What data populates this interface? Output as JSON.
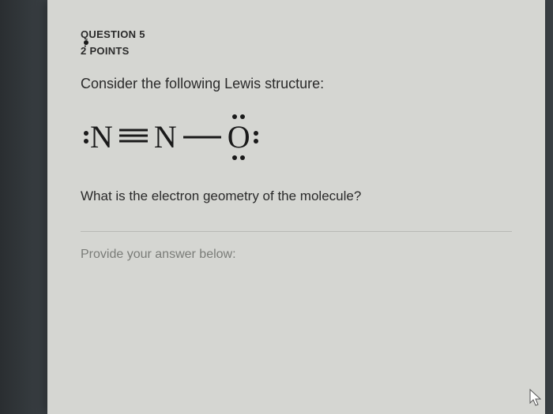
{
  "question": {
    "label": "QUESTION 5",
    "points": "2 POINTS",
    "separator": "·"
  },
  "prompt": "Consider the following Lewis structure:",
  "lewis": {
    "atoms": {
      "n1": "N",
      "n2": "N",
      "o": "O"
    },
    "bonds": {
      "triple_svg": "<svg width='36' height='20'><line x1='0' y1='3' x2='36' y2='3' stroke='#1a1a1a' stroke-width='3'/><line x1='0' y1='10' x2='36' y2='10' stroke='#1a1a1a' stroke-width='3'/><line x1='0' y1='17' x2='36' y2='17' stroke='#1a1a1a' stroke-width='3'/></svg>",
      "single_svg": "<svg width='48' height='8'><line x1='0' y1='4' x2='48' y2='4' stroke='#1a1a1a' stroke-width='3'/></svg>"
    }
  },
  "subquestion": "What is the electron geometry of the molecule?",
  "answer_label": "Provide your answer below:",
  "colors": {
    "page_bg": "#d5d6d2",
    "body_bg": "#3a4044",
    "text": "#2a2a2a",
    "muted": "#7a7c78",
    "divider": "#b8b9b5",
    "ink": "#1a1a1a"
  },
  "fontsize": {
    "header": 13,
    "prompt": 18,
    "atom": 40,
    "subq": 17,
    "answer_label": 16
  }
}
